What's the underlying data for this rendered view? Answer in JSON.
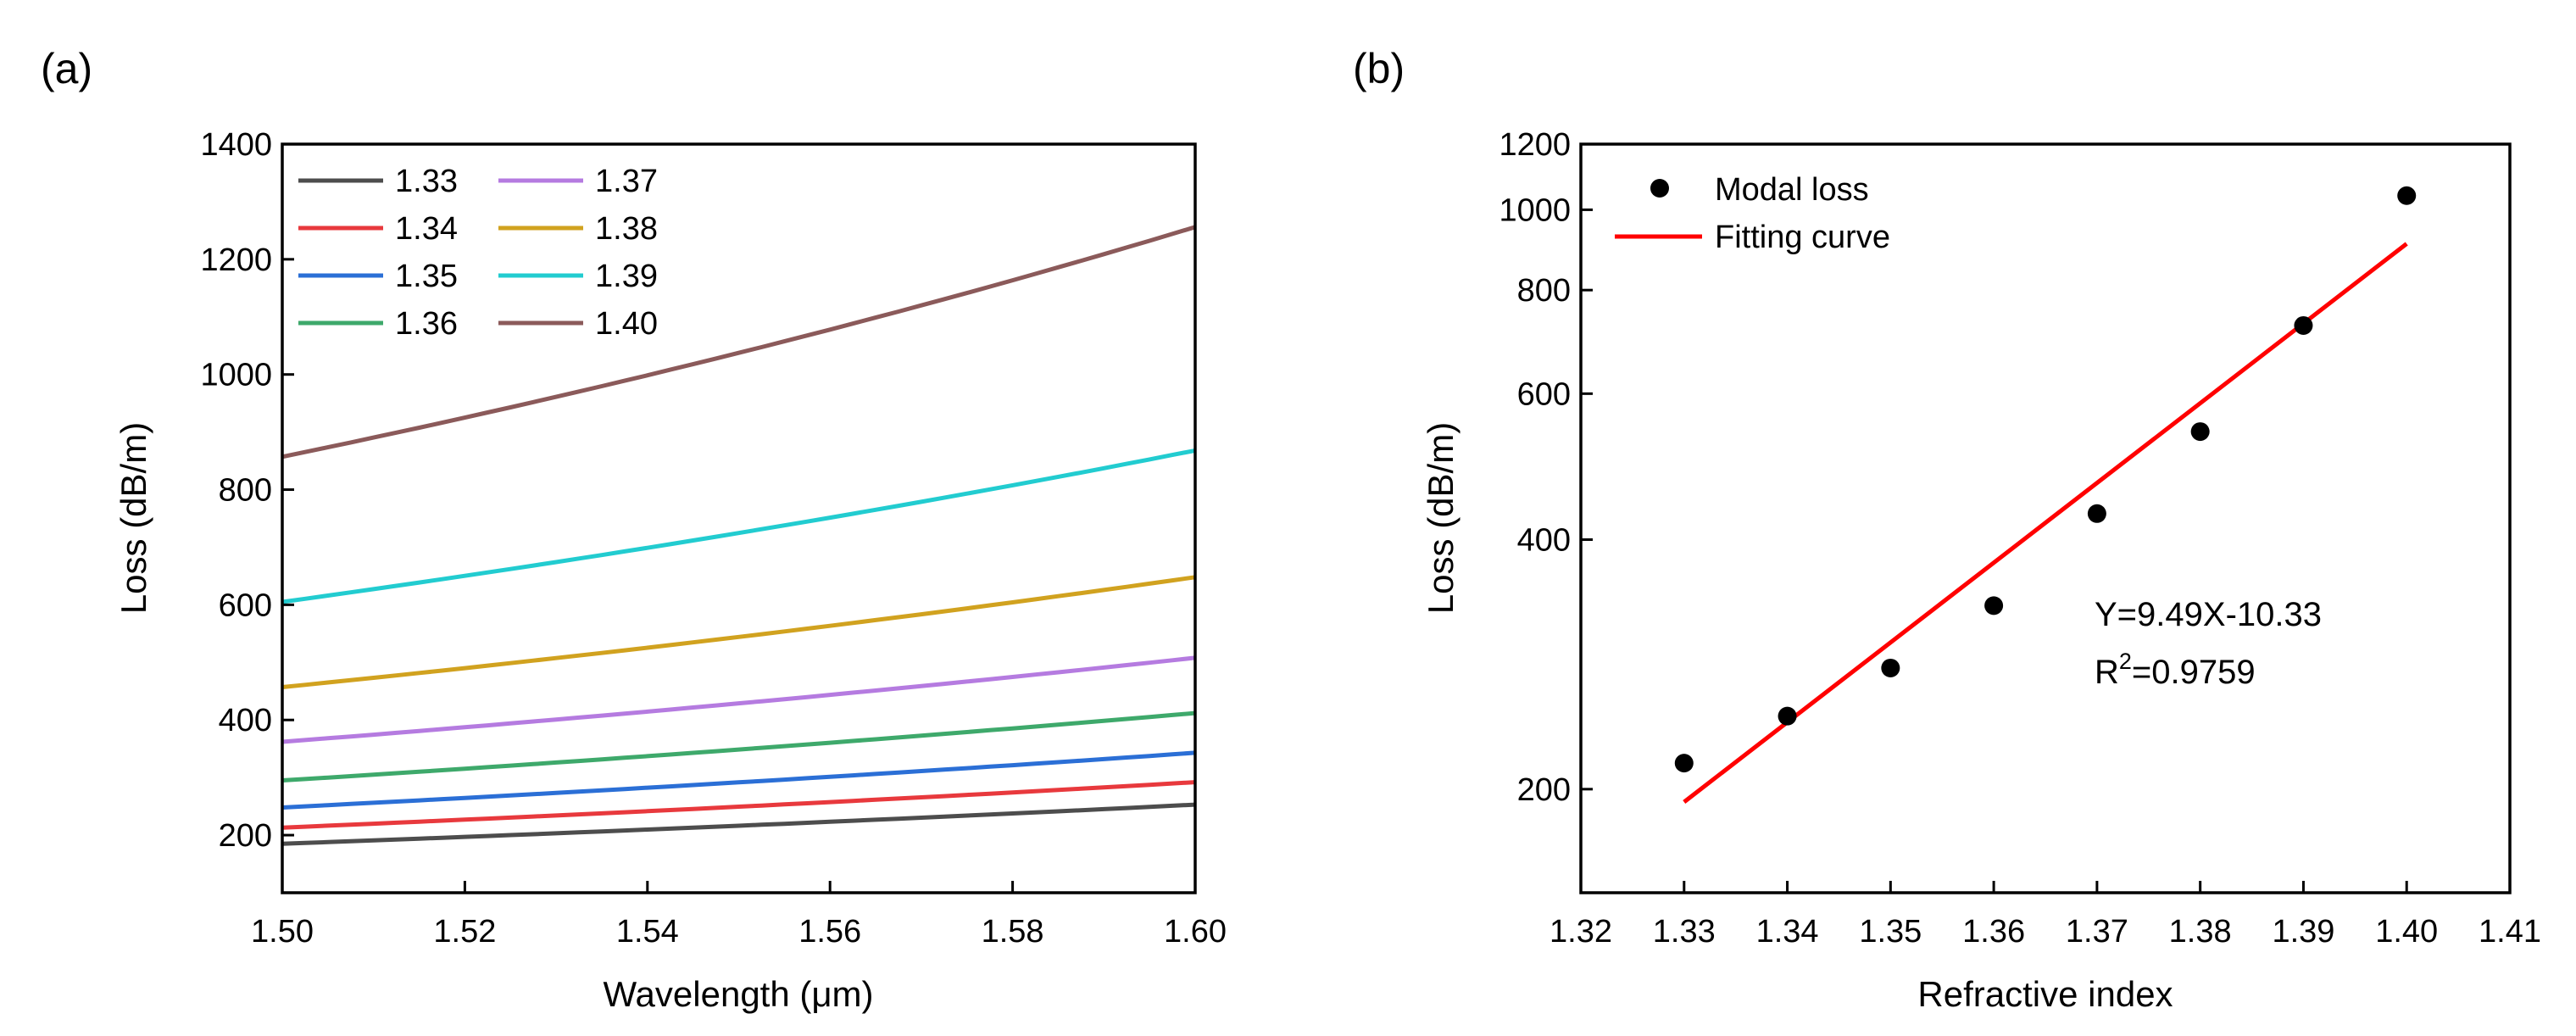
{
  "panels": {
    "a": "(a)",
    "b": "(b)"
  },
  "chart_data": [
    {
      "type": "line",
      "panel": "(a)",
      "xlabel": "Wavelength (μm)",
      "ylabel": "Loss (dB/m)",
      "xlim": [
        1.5,
        1.6
      ],
      "ylim": [
        100,
        1400
      ],
      "x_ticks": [
        "1.50",
        "1.52",
        "1.54",
        "1.56",
        "1.58",
        "1.60"
      ],
      "y_ticks": [
        "200",
        "400",
        "600",
        "800",
        "1000",
        "1200",
        "1400"
      ],
      "legend_position": "top-left",
      "series": [
        {
          "name": "1.33",
          "color": "#4d4d4d",
          "start": 185,
          "end": 253
        },
        {
          "name": "1.34",
          "color": "#e8393d",
          "start": 213,
          "end": 292
        },
        {
          "name": "1.35",
          "color": "#2b6fd6",
          "start": 248,
          "end": 343
        },
        {
          "name": "1.36",
          "color": "#3ea96b",
          "start": 295,
          "end": 412
        },
        {
          "name": "1.37",
          "color": "#b57be0",
          "start": 362,
          "end": 508
        },
        {
          "name": "1.38",
          "color": "#d1a21f",
          "start": 457,
          "end": 648
        },
        {
          "name": "1.39",
          "color": "#22ccd0",
          "start": 605,
          "end": 868
        },
        {
          "name": "1.40",
          "color": "#8b5a5a",
          "start": 857,
          "end": 1256
        }
      ]
    },
    {
      "type": "scatter",
      "panel": "(b)",
      "xlabel": "Refractive index",
      "ylabel": "Loss (dB/m)",
      "xlim": [
        1.32,
        1.41
      ],
      "ylim": [
        150,
        1200
      ],
      "y_scale": "log",
      "x_ticks": [
        "1.32",
        "1.33",
        "1.34",
        "1.35",
        "1.36",
        "1.37",
        "1.38",
        "1.39",
        "1.40",
        "1.41"
      ],
      "y_ticks": [
        "200",
        "400",
        "600",
        "800",
        "1000",
        "1200"
      ],
      "legend_position": "top-left",
      "points": {
        "name": "Modal loss",
        "x": [
          1.33,
          1.34,
          1.35,
          1.36,
          1.37,
          1.38,
          1.39,
          1.4
        ],
        "y": [
          215,
          245,
          280,
          333,
          430,
          540,
          725,
          1040
        ]
      },
      "fit": {
        "name": "Fitting curve",
        "color": "#ff0000",
        "x": [
          1.33,
          1.4
        ],
        "y": [
          193,
          910
        ]
      },
      "annotations": {
        "equation": "Y=9.49X-10.33",
        "r2_prefix": "R",
        "r2_sup": "2",
        "r2_value": "=0.9759"
      }
    }
  ]
}
